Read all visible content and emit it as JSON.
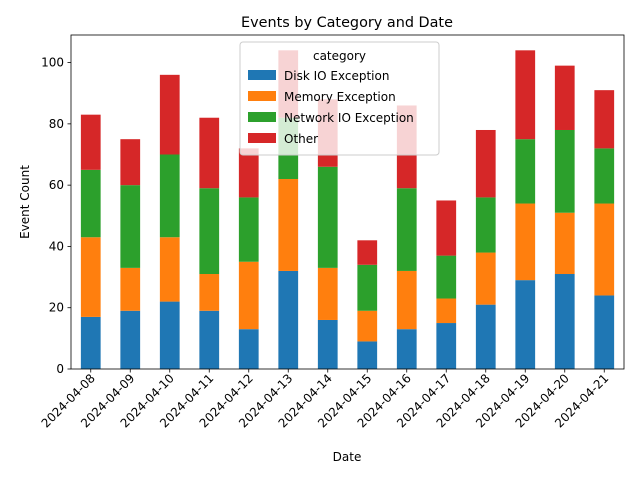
{
  "chart_data": {
    "type": "bar",
    "stacked": true,
    "title": "Events by Category and Date",
    "xlabel": "Date",
    "ylabel": "Event Count",
    "ylim": [
      0,
      109
    ],
    "yticks": [
      0,
      20,
      40,
      60,
      80,
      100
    ],
    "grid": false,
    "legend_position": "top-center",
    "legend_title": "category",
    "categories": [
      "2024-04-08",
      "2024-04-09",
      "2024-04-10",
      "2024-04-11",
      "2024-04-12",
      "2024-04-13",
      "2024-04-14",
      "2024-04-15",
      "2024-04-16",
      "2024-04-17",
      "2024-04-18",
      "2024-04-19",
      "2024-04-20",
      "2024-04-21"
    ],
    "series": [
      {
        "name": "Disk IO Exception",
        "color": "#1f77b4",
        "values": [
          17,
          19,
          22,
          19,
          13,
          32,
          16,
          9,
          13,
          15,
          21,
          29,
          31,
          24
        ]
      },
      {
        "name": "Memory Exception",
        "color": "#ff7f0e",
        "values": [
          26,
          14,
          21,
          12,
          22,
          30,
          17,
          10,
          19,
          8,
          17,
          25,
          20,
          30
        ]
      },
      {
        "name": "Network IO Exception",
        "color": "#2ca02c",
        "values": [
          22,
          27,
          27,
          28,
          21,
          20,
          33,
          15,
          27,
          14,
          18,
          21,
          27,
          18
        ]
      },
      {
        "name": "Other",
        "color": "#d62728",
        "values": [
          18,
          15,
          26,
          23,
          16,
          22,
          22,
          8,
          27,
          18,
          22,
          29,
          21,
          19
        ]
      }
    ]
  }
}
